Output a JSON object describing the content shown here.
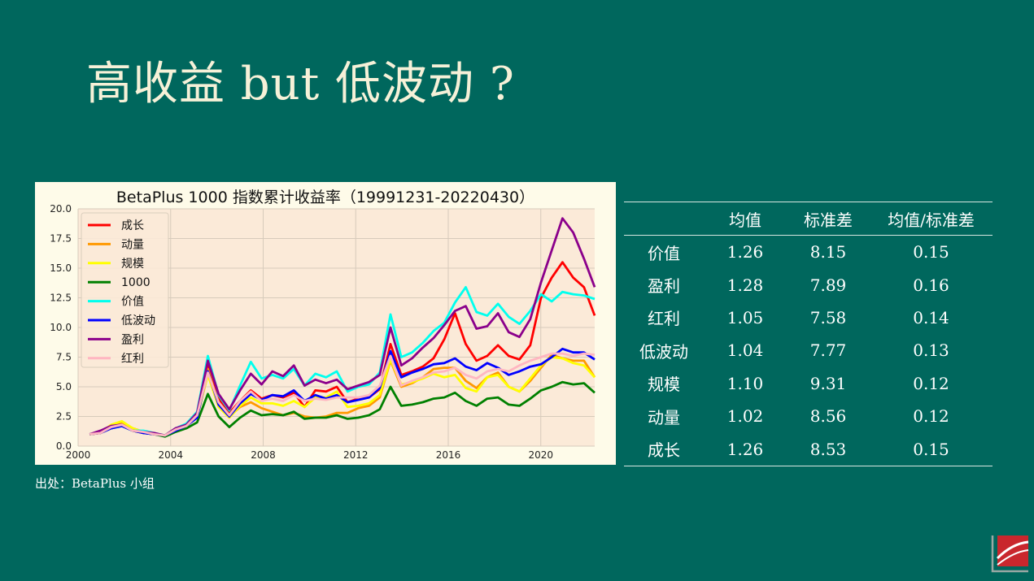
{
  "slide": {
    "title": "高收益 but 低波动 ?",
    "source": "出处：BetaPlus 小组"
  },
  "table": {
    "headers": [
      "",
      "均值",
      "标准差",
      "均值/标准差"
    ],
    "rows": [
      [
        "价值",
        "1.26",
        "8.15",
        "0.15"
      ],
      [
        "盈利",
        "1.28",
        "7.89",
        "0.16"
      ],
      [
        "红利",
        "1.05",
        "7.58",
        "0.14"
      ],
      [
        "低波动",
        "1.04",
        "7.77",
        "0.13"
      ],
      [
        "规模",
        "1.10",
        "9.31",
        "0.12"
      ],
      [
        "动量",
        "1.02",
        "8.56",
        "0.12"
      ],
      [
        "成长",
        "1.26",
        "8.53",
        "0.15"
      ]
    ]
  },
  "chart_data": {
    "type": "line",
    "title": "BetaPlus 1000 指数累计收益率（19991231-20220430）",
    "xlim": [
      2000,
      2022.33
    ],
    "ylim": [
      0,
      20
    ],
    "xticks": [
      2000,
      2004,
      2008,
      2012,
      2016,
      2020
    ],
    "yticks": [
      0,
      2.5,
      5,
      7.5,
      10,
      12.5,
      15,
      17.5,
      20
    ],
    "ytick_labels": [
      "0.0",
      "2.5",
      "5.0",
      "7.5",
      "10.0",
      "12.5",
      "15.0",
      "17.5",
      "20.0"
    ],
    "grid": true,
    "legend_position": "top-left",
    "series": [
      {
        "name": "成长",
        "color": "#ff0000",
        "values": [
          1.0,
          1.1,
          1.6,
          2.0,
          1.5,
          1.2,
          1.0,
          0.9,
          1.5,
          1.8,
          2.7,
          7.0,
          4.0,
          2.8,
          3.8,
          4.7,
          4.0,
          4.3,
          4.1,
          4.5,
          3.3,
          4.7,
          4.6,
          5.0,
          3.7,
          4.0,
          4.1,
          4.8,
          8.6,
          6.0,
          6.3,
          6.7,
          7.4,
          9.0,
          11.2,
          8.6,
          7.2,
          7.6,
          8.5,
          7.6,
          7.3,
          8.5,
          12.5,
          14.2,
          15.5,
          14.2,
          13.4,
          11.0
        ]
      },
      {
        "name": "动量",
        "color": "#ff9900",
        "values": [
          1.0,
          1.1,
          1.7,
          1.9,
          1.3,
          1.1,
          1.0,
          0.9,
          1.4,
          1.7,
          2.5,
          6.5,
          3.5,
          2.5,
          3.3,
          3.7,
          3.2,
          2.9,
          2.6,
          2.8,
          2.5,
          2.4,
          2.5,
          2.8,
          2.8,
          3.2,
          3.4,
          4.1,
          7.2,
          5.0,
          5.3,
          5.8,
          6.5,
          6.6,
          6.6,
          5.5,
          4.9,
          5.8,
          6.2,
          5.0,
          4.6,
          5.5,
          6.6,
          7.7,
          7.4,
          7.2,
          7.2,
          5.8
        ]
      },
      {
        "name": "规模",
        "color": "#ffff00",
        "values": [
          1.0,
          1.1,
          1.8,
          2.1,
          1.5,
          1.2,
          1.0,
          0.9,
          1.4,
          1.7,
          2.4,
          6.0,
          3.3,
          2.4,
          3.4,
          4.1,
          3.6,
          3.6,
          3.4,
          3.8,
          3.3,
          4.1,
          4.1,
          4.6,
          3.3,
          3.4,
          3.6,
          4.3,
          7.3,
          5.2,
          5.4,
          5.7,
          6.1,
          5.8,
          6.0,
          4.9,
          4.6,
          5.8,
          6.0,
          5.0,
          4.6,
          5.7,
          6.8,
          7.5,
          7.4,
          7.0,
          6.8,
          5.8
        ]
      },
      {
        "name": "1000",
        "color": "#008000",
        "values": [
          1.0,
          1.1,
          1.5,
          1.7,
          1.3,
          1.1,
          1.0,
          0.8,
          1.2,
          1.5,
          2.0,
          4.4,
          2.5,
          1.6,
          2.4,
          3.0,
          2.6,
          2.7,
          2.6,
          2.9,
          2.3,
          2.4,
          2.4,
          2.6,
          2.3,
          2.4,
          2.6,
          3.1,
          5.0,
          3.4,
          3.5,
          3.7,
          4.0,
          4.1,
          4.5,
          3.8,
          3.4,
          4.0,
          4.1,
          3.5,
          3.4,
          4.0,
          4.7,
          5.0,
          5.4,
          5.2,
          5.3,
          4.5
        ]
      },
      {
        "name": "价值",
        "color": "#00ffee",
        "values": [
          1.0,
          1.2,
          1.5,
          1.7,
          1.3,
          1.3,
          1.1,
          0.9,
          1.5,
          1.9,
          2.9,
          7.6,
          4.3,
          3.0,
          5.1,
          7.1,
          5.7,
          6.0,
          5.7,
          6.5,
          5.1,
          6.1,
          5.8,
          6.3,
          4.6,
          5.0,
          5.2,
          6.2,
          11.1,
          7.5,
          7.9,
          8.7,
          9.7,
          10.4,
          12.1,
          13.4,
          11.3,
          11.0,
          12.0,
          10.9,
          10.3,
          11.4,
          12.8,
          12.2,
          13.0,
          12.8,
          12.7,
          12.4
        ]
      },
      {
        "name": "低波动",
        "color": "#0000ff",
        "values": [
          1.0,
          1.1,
          1.5,
          1.7,
          1.3,
          1.1,
          1.0,
          0.9,
          1.3,
          1.7,
          2.4,
          6.3,
          3.5,
          2.5,
          3.6,
          4.4,
          3.9,
          4.3,
          4.2,
          4.7,
          3.8,
          4.3,
          4.0,
          4.3,
          3.7,
          3.9,
          4.1,
          4.9,
          8.0,
          5.8,
          6.2,
          6.5,
          6.9,
          7.0,
          7.4,
          6.7,
          6.4,
          7.0,
          6.6,
          6.0,
          6.3,
          6.7,
          6.9,
          7.5,
          8.2,
          7.9,
          7.9,
          7.3
        ]
      },
      {
        "name": "盈利",
        "color": "#8b008b",
        "values": [
          1.0,
          1.3,
          1.7,
          1.8,
          1.3,
          1.2,
          1.1,
          0.9,
          1.5,
          1.8,
          2.8,
          7.2,
          4.4,
          3.1,
          4.7,
          6.1,
          5.2,
          6.3,
          5.9,
          6.8,
          5.1,
          5.6,
          5.3,
          5.6,
          4.8,
          5.1,
          5.4,
          6.0,
          10.0,
          6.8,
          7.4,
          8.3,
          9.1,
          10.2,
          11.4,
          11.8,
          9.9,
          10.1,
          11.2,
          9.6,
          9.2,
          10.7,
          13.8,
          16.5,
          19.2,
          18.0,
          15.8,
          13.4
        ]
      },
      {
        "name": "红利",
        "color": "#ffb6c1",
        "values": [
          1.0,
          1.1,
          1.6,
          1.8,
          1.3,
          1.2,
          1.0,
          0.9,
          1.4,
          1.7,
          2.6,
          6.2,
          3.7,
          2.6,
          3.8,
          4.6,
          3.8,
          4.0,
          3.8,
          4.3,
          3.8,
          4.0,
          3.9,
          4.1,
          4.1,
          4.1,
          4.3,
          5.1,
          7.6,
          5.1,
          5.5,
          5.8,
          6.2,
          6.3,
          6.6,
          6.0,
          5.7,
          6.3,
          6.5,
          6.3,
          6.8,
          7.2,
          7.5,
          7.8,
          7.8,
          7.6,
          7.8,
          7.7
        ]
      }
    ]
  }
}
